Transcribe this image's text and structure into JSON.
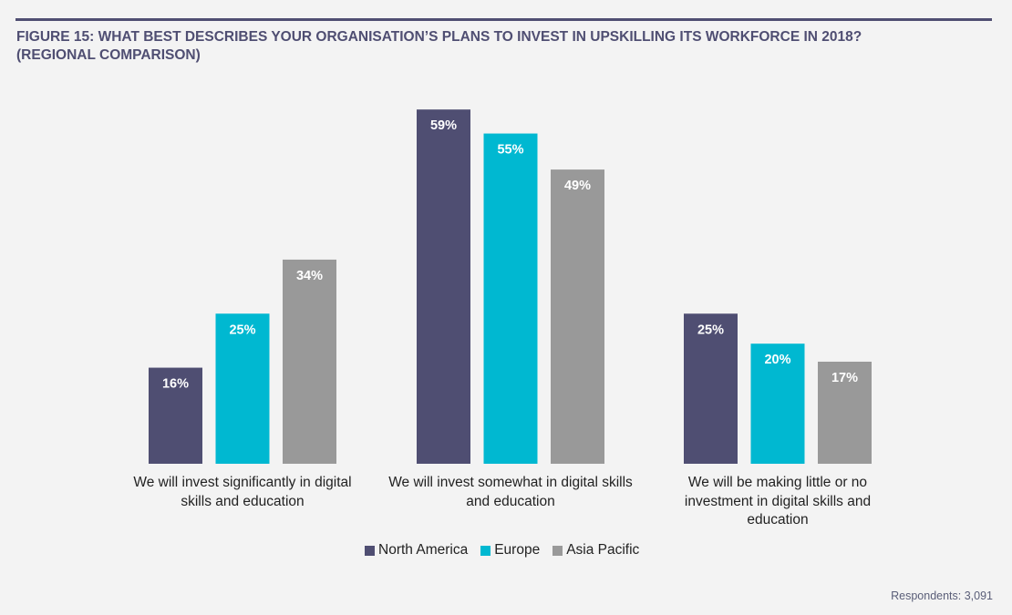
{
  "title_line1": "FIGURE 15: WHAT BEST DESCRIBES YOUR ORGANISATION’S PLANS TO INVEST IN UPSKILLING ITS WORKFORCE IN 2018?",
  "title_line2": "(REGIONAL COMPARISON)",
  "footnote": "Respondents: 3,091",
  "chart_data": {
    "type": "bar",
    "title": "FIGURE 15: WHAT BEST DESCRIBES YOUR ORGANISATION’S PLANS TO INVEST IN UPSKILLING ITS WORKFORCE IN 2018? (REGIONAL COMPARISON)",
    "xlabel": "",
    "ylabel": "",
    "ylim": [
      0,
      60
    ],
    "grid": false,
    "legend_position": "bottom",
    "unit": "%",
    "categories": [
      "We will invest significantly in digital skills and education",
      "We will invest somewhat in digital skills and education",
      "We will be making little or no investment in digital skills and education"
    ],
    "category_lines": [
      [
        "We will invest significantly in digital",
        "skills and education"
      ],
      [
        "We will invest somewhat in digital skills",
        "and education"
      ],
      [
        "We will be making little or no",
        "investment in digital skills and",
        "education"
      ]
    ],
    "series": [
      {
        "name": "North America",
        "color": "#4f4e72",
        "values": [
          16,
          59,
          25
        ]
      },
      {
        "name": "Europe",
        "color": "#00b8d1",
        "values": [
          25,
          55,
          20
        ]
      },
      {
        "name": "Asia Pacific",
        "color": "#999999",
        "values": [
          34,
          49,
          17
        ]
      }
    ]
  }
}
